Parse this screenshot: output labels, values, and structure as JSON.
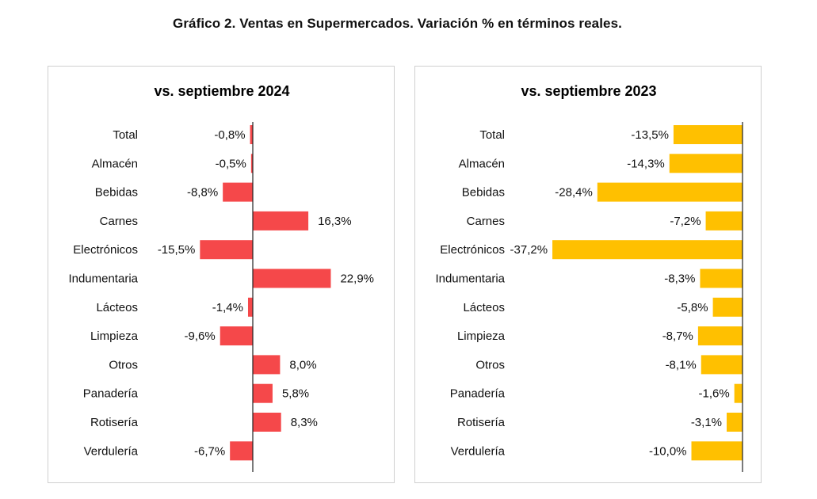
{
  "title": "Gráfico 2. Ventas en Supermercados. Variación % en términos reales.",
  "categories": [
    "Total",
    "Almacén",
    "Bebidas",
    "Carnes",
    "Electrónicos",
    "Indumentaria",
    "Lácteos",
    "Limpieza",
    "Otros",
    "Panadería",
    "Rotisería",
    "Verdulería"
  ],
  "chart_data": [
    {
      "type": "bar",
      "orientation": "horizontal",
      "title": "vs. septiembre 2024",
      "color": "#f5484a",
      "categories": [
        "Total",
        "Almacén",
        "Bebidas",
        "Carnes",
        "Electrónicos",
        "Indumentaria",
        "Lácteos",
        "Limpieza",
        "Otros",
        "Panadería",
        "Rotisería",
        "Verdulería"
      ],
      "values": [
        -0.8,
        -0.5,
        -8.8,
        16.3,
        -15.5,
        22.9,
        -1.4,
        -9.6,
        8.0,
        5.8,
        8.3,
        -6.7
      ],
      "labels": [
        "-0,8%",
        "-0,5%",
        "-8,8%",
        "16,3%",
        "-15,5%",
        "22,9%",
        "-1,4%",
        "-9,6%",
        "8,0%",
        "5,8%",
        "8,3%",
        "-6,7%"
      ]
    },
    {
      "type": "bar",
      "orientation": "horizontal",
      "title": "vs. septiembre 2023",
      "color": "#ffc000",
      "categories": [
        "Total",
        "Almacén",
        "Bebidas",
        "Carnes",
        "Electrónicos",
        "Indumentaria",
        "Lácteos",
        "Limpieza",
        "Otros",
        "Panadería",
        "Rotisería",
        "Verdulería"
      ],
      "values": [
        -13.5,
        -14.3,
        -28.4,
        -7.2,
        -37.2,
        -8.3,
        -5.8,
        -8.7,
        -8.1,
        -1.6,
        -3.1,
        -10.0
      ],
      "labels": [
        "-13,5%",
        "-14,3%",
        "-28,4%",
        "-7,2%",
        "-37,2%",
        "-8,3%",
        "-5,8%",
        "-8,7%",
        "-8,1%",
        "-1,6%",
        "-3,1%",
        "-10,0%"
      ]
    }
  ]
}
